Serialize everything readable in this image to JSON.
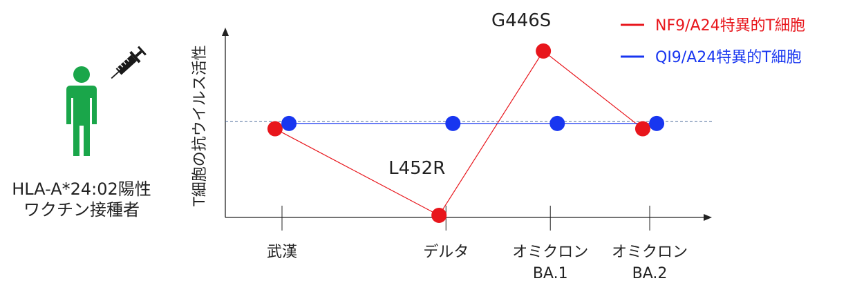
{
  "subject": {
    "line1": "HLA-A*24:02陽性",
    "line2": "ワクチン接種者",
    "person_color": "#1aa64a",
    "icons": [
      "person-icon",
      "syringe-icon"
    ]
  },
  "chart_data": {
    "type": "line",
    "ylabel": "T細胞の抗ウイルス活性",
    "categories": [
      {
        "line1": "武漢",
        "line2": ""
      },
      {
        "line1": "デルタ",
        "line2": ""
      },
      {
        "line1": "オミクロン",
        "line2": "BA.1"
      },
      {
        "line1": "オミクロン",
        "line2": "BA.2"
      }
    ],
    "x_positions": [
      0,
      1.65,
      2.7,
      3.7
    ],
    "ylim": [
      0,
      1
    ],
    "baseline": 0.5,
    "series": [
      {
        "name": "NF9/A24特異的T細胞",
        "color": "#e8161c",
        "values": [
          0.49,
          0.0,
          0.93,
          0.49
        ],
        "dx": -0.07
      },
      {
        "name": "QI9/A24特異的T細胞",
        "color": "#1836f0",
        "values": [
          0.52,
          0.52,
          0.52,
          0.52
        ],
        "dx": 0.07
      }
    ],
    "annotations": [
      {
        "text": "L452R",
        "category": 1
      },
      {
        "text": "G446S",
        "category": 2
      }
    ],
    "legend_position": "top-right"
  }
}
